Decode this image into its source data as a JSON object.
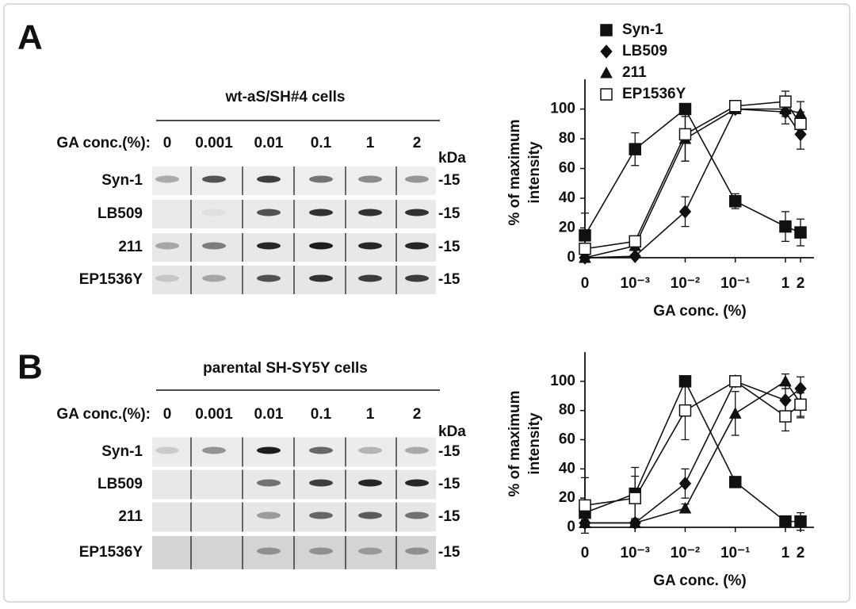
{
  "panels": [
    {
      "label": "A",
      "cell_line": "wt-aS/SH#4 cells",
      "conc_label": "GA conc.(%):",
      "concentrations": [
        "0",
        "0.001",
        "0.01",
        "0.1",
        "1",
        "2"
      ],
      "unit": "kDa",
      "antibodies": [
        "Syn-1",
        "LB509",
        "211",
        "EP1536Y"
      ],
      "marker": "-15"
    },
    {
      "label": "B",
      "cell_line": "parental SH-SY5Y cells",
      "conc_label": "GA conc.(%):",
      "concentrations": [
        "0",
        "0.001",
        "0.01",
        "0.1",
        "1",
        "2"
      ],
      "unit": "kDa",
      "antibodies": [
        "Syn-1",
        "LB509",
        "211",
        "EP1536Y"
      ],
      "marker": "-15"
    }
  ],
  "chart_data": [
    {
      "type": "line",
      "xscale": "log",
      "x": [
        0,
        0.001,
        0.01,
        0.1,
        1,
        2
      ],
      "xlim": [
        0,
        2
      ],
      "xticks": [
        0,
        {
          "value": 0.001,
          "label": "10⁻³"
        },
        {
          "value": 0.01,
          "label": "10⁻²"
        },
        {
          "value": 0.1,
          "label": "10⁻¹"
        },
        1,
        2
      ],
      "ylim": [
        0,
        120
      ],
      "yticks": [
        0,
        20,
        40,
        60,
        80,
        100
      ],
      "xlabel": "GA conc. (%)",
      "ylabel": [
        "% of maximum",
        "intensity"
      ],
      "legend": "top",
      "series": [
        {
          "name": "Syn-1",
          "marker": "square",
          "color": "#111111",
          "fill": "#111111",
          "values": [
            15,
            73,
            100,
            38,
            21,
            17
          ],
          "errors": [
            15,
            11,
            0,
            5,
            10,
            9
          ]
        },
        {
          "name": "LB509",
          "marker": "diamond",
          "color": "#111111",
          "fill": "#111111",
          "values": [
            0,
            1,
            31,
            100,
            98,
            83
          ],
          "errors": [
            0,
            1,
            10,
            0,
            8,
            10
          ]
        },
        {
          "name": "211",
          "marker": "triangle",
          "color": "#111111",
          "fill": "#111111",
          "values": [
            0,
            8,
            80,
            100,
            100,
            97
          ],
          "errors": [
            0,
            2,
            15,
            0,
            5,
            8
          ]
        },
        {
          "name": "EP1536Y",
          "marker": "square",
          "color": "#111111",
          "fill": "#ffffff",
          "values": [
            6,
            11,
            83,
            102,
            105,
            90
          ],
          "errors": [
            3,
            3,
            18,
            3,
            7,
            8
          ]
        }
      ]
    },
    {
      "type": "line",
      "xscale": "log",
      "x": [
        0,
        0.001,
        0.01,
        0.1,
        1,
        2
      ],
      "xlim": [
        0,
        2
      ],
      "xticks": [
        0,
        {
          "value": 0.001,
          "label": "10⁻³"
        },
        {
          "value": 0.01,
          "label": "10⁻²"
        },
        {
          "value": 0.1,
          "label": "10⁻¹"
        },
        1,
        2
      ],
      "ylim": [
        0,
        120
      ],
      "yticks": [
        0,
        20,
        40,
        60,
        80,
        100
      ],
      "xlabel": "GA conc. (%)",
      "ylabel": [
        "% of maximum",
        "intensity"
      ],
      "series": [
        {
          "marker": "square",
          "color": "#111111",
          "fill": "#111111",
          "values": [
            10,
            23,
            100,
            31,
            4,
            4
          ],
          "errors": [
            5,
            18,
            0,
            2,
            3,
            6
          ]
        },
        {
          "marker": "diamond",
          "color": "#111111",
          "fill": "#111111",
          "values": [
            3,
            3,
            30,
            100,
            87,
            95
          ],
          "errors": [
            2,
            3,
            10,
            3,
            8,
            8
          ]
        },
        {
          "marker": "triangle",
          "color": "#111111",
          "fill": "#111111",
          "values": [
            3,
            3,
            13,
            78,
            100,
            85
          ],
          "errors": [
            2,
            2,
            3,
            15,
            5,
            10
          ]
        },
        {
          "marker": "square",
          "color": "#111111",
          "fill": "#ffffff",
          "values": [
            15,
            20,
            80,
            100,
            76,
            84
          ],
          "errors": [
            19,
            15,
            20,
            3,
            10,
            8
          ]
        }
      ]
    }
  ]
}
